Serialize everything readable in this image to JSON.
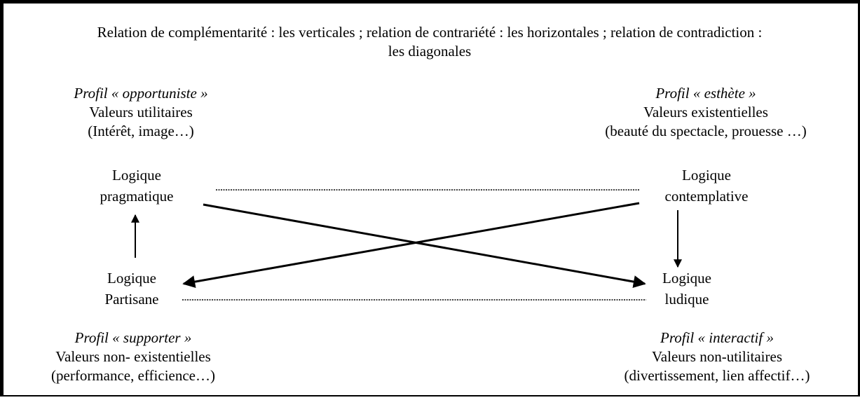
{
  "caption": [
    "Relation de complémentarité : les verticales ; relation de contrariété : les horizontales ; relation de contradiction :",
    "les diagonales"
  ],
  "profiles": [
    {
      "profile": "Profil « opportuniste »",
      "values": "Valeurs utilitaires",
      "examples": "(Intérêt, image…)"
    },
    {
      "profile": "Profil « esthète »",
      "values": "Valeurs existentielles",
      "examples": "(beauté du spectacle, prouesse …)"
    },
    {
      "profile": "Profil « supporter »",
      "values": "Valeurs non- existentielles",
      "examples": "(performance, efficience…)"
    },
    {
      "profile": "Profil « interactif »",
      "values": "Valeurs non-utilitaires",
      "examples": "(divertissement, lien affectif…)"
    }
  ],
  "logics": [
    [
      "Logique",
      "pragmatique"
    ],
    [
      "Logique",
      "contemplative"
    ],
    [
      "Logique",
      "Partisane"
    ],
    [
      "Logique",
      "ludique"
    ]
  ]
}
